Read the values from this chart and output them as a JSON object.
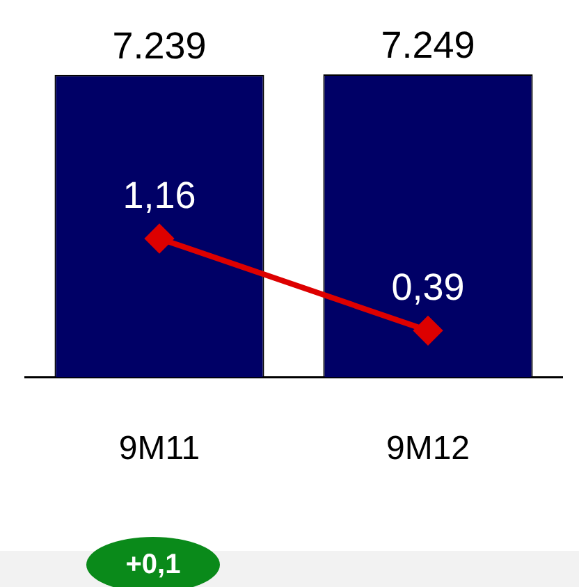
{
  "chart_data": {
    "type": "bar",
    "categories": [
      "9M11",
      "9M12"
    ],
    "series": [
      {
        "color": "#000066",
        "values": [
          7239,
          7249
        ],
        "value_labels": [
          "7.239",
          "7.249"
        ]
      },
      {
        "type": "line",
        "axis": "y2",
        "color": "#dd0000",
        "values": [
          1.16,
          0.39
        ],
        "value_labels": [
          "1,16",
          "0,39"
        ],
        "marker": "diamond",
        "line_style": "solid"
      }
    ],
    "ylim": [
      0,
      7300
    ],
    "y2lim": [
      0,
      2.55
    ],
    "tick_labels": "x",
    "grid": false,
    "legend": false,
    "annotations": [
      "+0,1"
    ]
  }
}
